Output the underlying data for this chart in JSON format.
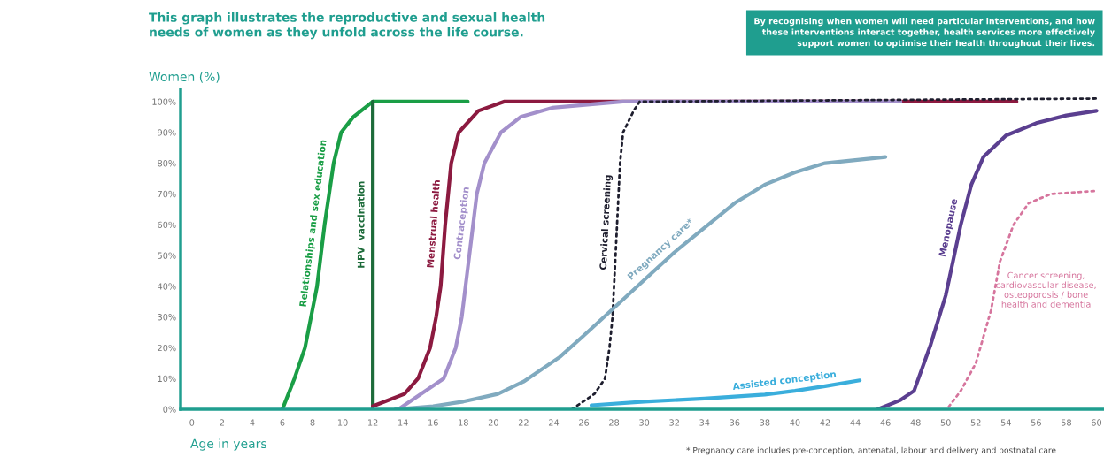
{
  "chart_data": {
    "type": "line",
    "title": "This graph illustrates the reproductive and sexual health\nneeds of women as they unfold across the life course.",
    "xlabel": "Age in years",
    "ylabel": "Women (%)",
    "annotations": [
      "By recognising when women will need particular interventions, and how\nthese interventions interact together, health services more effectively\nsupport women to optimise their health throughout their lives.",
      "* Pregnancy care includes pre-conception, antenatal, labour and delivery and postnatal care"
    ],
    "xlim": [
      -0.75,
      60.5
    ],
    "ylim": [
      0,
      104
    ],
    "xticks": [
      0,
      2,
      4,
      6,
      8,
      10,
      12,
      14,
      16,
      18,
      20,
      22,
      24,
      26,
      28,
      30,
      32,
      34,
      36,
      38,
      40,
      42,
      44,
      46,
      48,
      50,
      52,
      54,
      56,
      58,
      60
    ],
    "yticks": [
      {
        "value": 0,
        "label": "0%"
      },
      {
        "value": 10,
        "label": "10%"
      },
      {
        "value": 20,
        "label": "20%"
      },
      {
        "value": 30,
        "label": "30%"
      },
      {
        "value": 40,
        "label": "40%"
      },
      {
        "value": 50,
        "label": "50%"
      },
      {
        "value": 60,
        "label": "60%"
      },
      {
        "value": 70,
        "label": "70%"
      },
      {
        "value": 80,
        "label": "80%"
      },
      {
        "value": 90,
        "label": "90%"
      },
      {
        "value": 100,
        "label": "100%"
      }
    ],
    "grid": false,
    "legend": false,
    "marker": "none",
    "line_style": "solid",
    "series": [
      {
        "name": "Relationships and sex education",
        "color": "#1a9e46",
        "x": [
          6,
          6.8,
          7.5,
          7.9,
          8.3,
          8.55,
          8.8,
          9.1,
          9.4,
          9.9,
          10.7,
          12,
          18.3
        ],
        "values": [
          0,
          10,
          20,
          30,
          40,
          50,
          60,
          70,
          80,
          90,
          95,
          100,
          100
        ]
      },
      {
        "name": "HPV  vaccination",
        "color": "#1d6b3a",
        "x": [
          12,
          12
        ],
        "values": [
          0,
          100
        ]
      },
      {
        "name": "Menstrual health",
        "color": "#8c1a40",
        "x": [
          12,
          14.1,
          15,
          15.8,
          16.2,
          16.5,
          16.8,
          17.2,
          17.7,
          19,
          20.7,
          54.7
        ],
        "values": [
          1,
          5,
          10,
          20,
          30,
          40,
          60,
          80,
          90,
          97,
          100,
          100
        ]
      },
      {
        "name": "Contraception",
        "color": "#a390cb",
        "x": [
          13.7,
          16.7,
          17.5,
          17.9,
          18.4,
          18.9,
          19.4,
          20.5,
          21.8,
          23.9,
          28.6,
          47
        ],
        "values": [
          0,
          10,
          20,
          30,
          50,
          70,
          80,
          90,
          95,
          98,
          100,
          100
        ]
      },
      {
        "name": "Cervical screening",
        "color": "#1e1e2e",
        "line_style": "dotted",
        "x": [
          25.2,
          26.7,
          27.4,
          27.7,
          27.9,
          28.1,
          28.3,
          28.4,
          28.6,
          29.3,
          29.7,
          60
        ],
        "values": [
          0,
          5,
          10,
          20,
          30,
          50,
          70,
          80,
          90,
          97,
          100,
          101
        ]
      },
      {
        "name": "Pregnancy care*",
        "color": "#80aabf",
        "x": [
          13.5,
          16,
          18,
          20.3,
          22,
          24.4,
          26,
          28,
          30,
          32,
          34,
          36,
          38,
          40,
          42,
          44,
          46
        ],
        "values": [
          0,
          1,
          2.5,
          5,
          9,
          17,
          24,
          33,
          42,
          51,
          59,
          67,
          73,
          77,
          80,
          81,
          82
        ]
      },
      {
        "name": "Assisted conception",
        "color": "#3aaedc",
        "x": [
          26.5,
          30,
          34,
          38,
          40,
          42,
          44.3
        ],
        "values": [
          1.3,
          2.5,
          3.5,
          4.8,
          6,
          7.5,
          9.4
        ]
      },
      {
        "name": "Menopause",
        "color": "#5b3f90",
        "x": [
          45.5,
          47,
          47.9,
          49,
          50,
          51,
          51.7,
          52.5,
          54,
          56,
          58,
          60
        ],
        "values": [
          0,
          3,
          6,
          21,
          37,
          60,
          73,
          82,
          89,
          93,
          95.5,
          97
        ]
      },
      {
        "name": "Cancer screening,\ncardiovascular disease,\nosteoporosis / bone\nhealth and dementia",
        "color": "#d6759d",
        "line_style": "dotted",
        "x": [
          50.2,
          51,
          52,
          53,
          53.6,
          54.5,
          55.5,
          57,
          60
        ],
        "values": [
          0.8,
          6,
          15,
          32,
          48,
          60,
          67,
          70,
          71
        ]
      }
    ]
  }
}
